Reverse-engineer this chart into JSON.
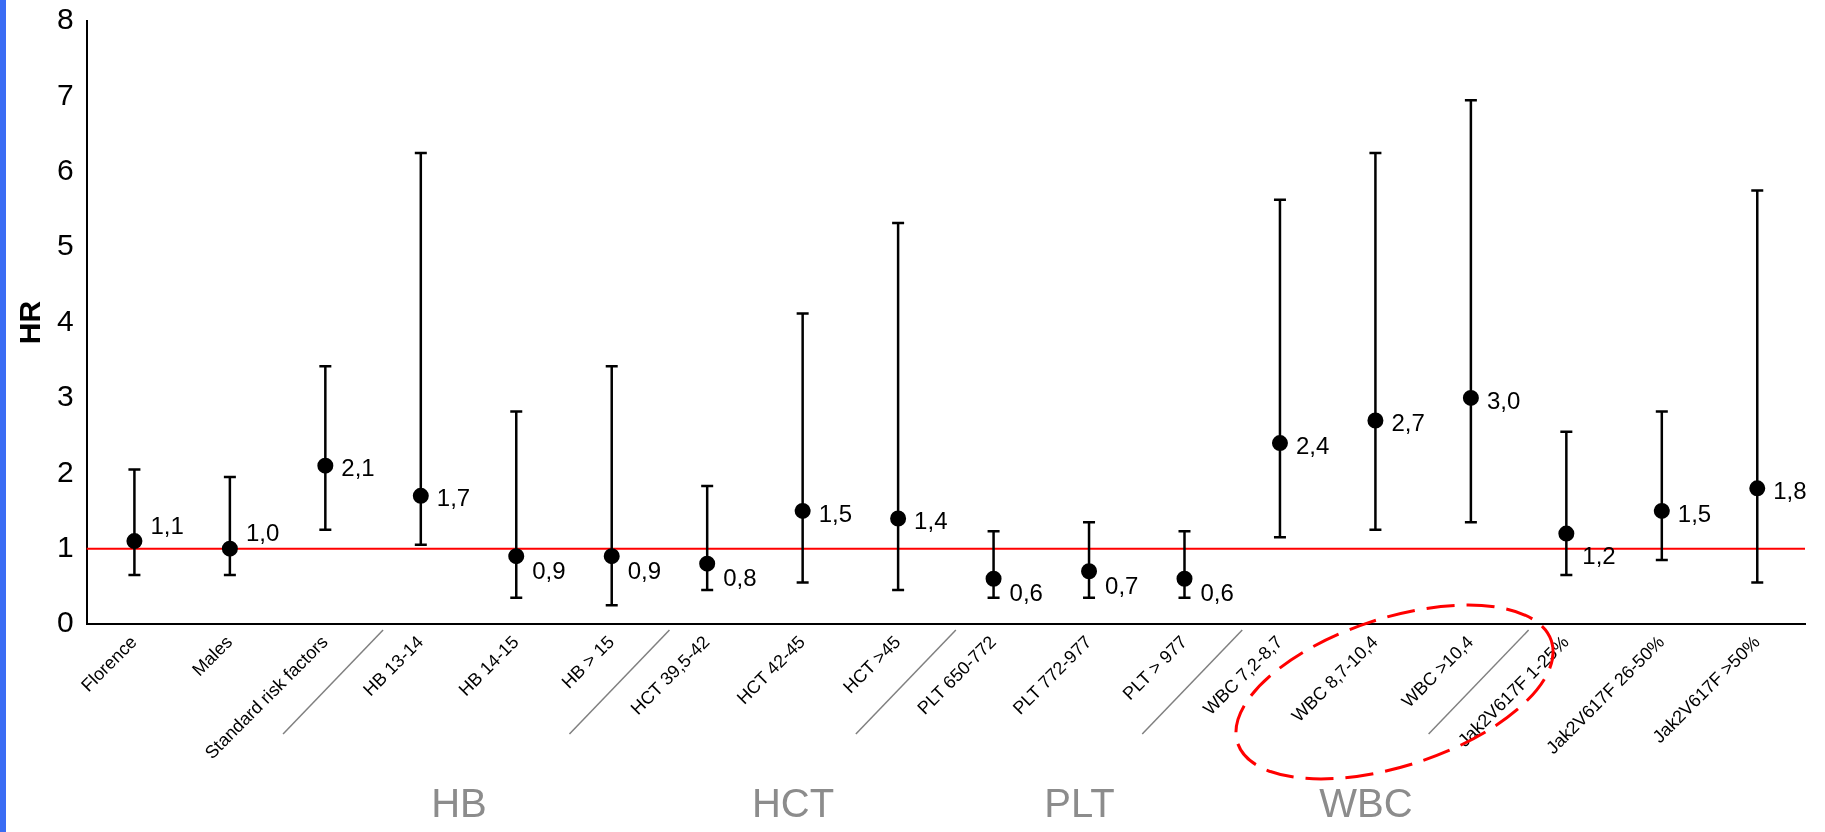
{
  "chart_data": {
    "type": "scatter",
    "ylabel": "HR",
    "categories": [
      "Florence",
      "Males",
      "Standard risk factors",
      "HB 13-14",
      "HB 14-15",
      "HB > 15",
      "HCT 39,5-42",
      "HCT 42-45",
      "HCT >45",
      "PLT 650-772",
      "PLT 772-977",
      "PLT > 977",
      "WBC 7,2-8,7",
      "WBC 8,7-10,4",
      "WBC >10,4",
      "Jak2V617F 1-25%",
      "Jak2V617F 26-50%",
      "Jak2V617F >50%"
    ],
    "values": [
      1.1,
      1.0,
      2.1,
      1.7,
      0.9,
      0.9,
      0.8,
      1.5,
      1.4,
      0.6,
      0.7,
      0.6,
      2.4,
      2.7,
      3.0,
      1.2,
      1.5,
      1.8
    ],
    "value_labels": [
      "1,1",
      "1,0",
      "2,1",
      "1,7",
      "0,9",
      "0,9",
      "0,8",
      "1,5",
      "1,4",
      "0,6",
      "0,7",
      "0,6",
      "2,4",
      "2,7",
      "3,0",
      "1,2",
      "1,5",
      "1,8"
    ],
    "errors": [
      [
        0.65,
        2.05
      ],
      [
        0.65,
        1.95
      ],
      [
        1.25,
        3.42
      ],
      [
        1.05,
        6.25
      ],
      [
        0.35,
        2.82
      ],
      [
        0.25,
        3.42
      ],
      [
        0.45,
        1.83
      ],
      [
        0.55,
        4.12
      ],
      [
        0.45,
        5.32
      ],
      [
        0.35,
        1.23
      ],
      [
        0.35,
        1.35
      ],
      [
        0.35,
        1.23
      ],
      [
        1.15,
        5.63
      ],
      [
        1.25,
        6.25
      ],
      [
        1.35,
        6.95
      ],
      [
        0.65,
        2.55
      ],
      [
        0.85,
        2.82
      ],
      [
        0.55,
        5.75
      ]
    ],
    "color": "#000000",
    "marker": "circle",
    "ylim": [
      0,
      8
    ],
    "yticks": [
      0,
      1,
      2,
      3,
      4,
      5,
      6,
      7,
      8
    ],
    "grid": false,
    "legend": false,
    "ref_lines": [
      {
        "axis": "y",
        "value": 1,
        "color": "#ff0000"
      }
    ],
    "annotations": [
      "HB",
      "HCT",
      "PLT",
      "WBC"
    ]
  }
}
